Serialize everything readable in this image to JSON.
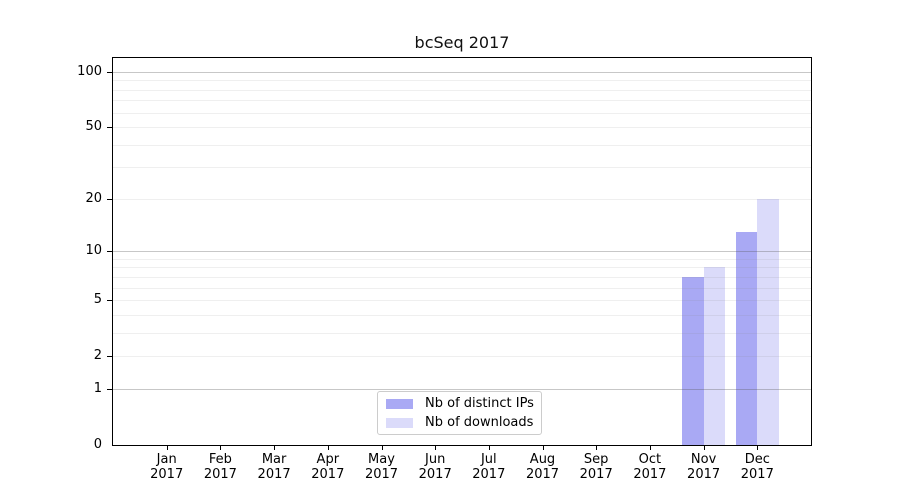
{
  "figure": {
    "background": "#ffffff"
  },
  "chart_data": {
    "type": "bar",
    "title": "bcSeq 2017",
    "categories": [
      {
        "month": "Jan",
        "year": "2017"
      },
      {
        "month": "Feb",
        "year": "2017"
      },
      {
        "month": "Mar",
        "year": "2017"
      },
      {
        "month": "Apr",
        "year": "2017"
      },
      {
        "month": "May",
        "year": "2017"
      },
      {
        "month": "Jun",
        "year": "2017"
      },
      {
        "month": "Jul",
        "year": "2017"
      },
      {
        "month": "Aug",
        "year": "2017"
      },
      {
        "month": "Sep",
        "year": "2017"
      },
      {
        "month": "Oct",
        "year": "2017"
      },
      {
        "month": "Nov",
        "year": "2017"
      },
      {
        "month": "Dec",
        "year": "2017"
      }
    ],
    "series": [
      {
        "name": "Nb of distinct IPs",
        "color": "#a9a9f4",
        "values": [
          0,
          0,
          0,
          0,
          0,
          0,
          0,
          0,
          0,
          0,
          7,
          13
        ]
      },
      {
        "name": "Nb of downloads",
        "color": "#dbdbfa",
        "values": [
          0,
          0,
          0,
          0,
          0,
          0,
          0,
          0,
          0,
          0,
          8,
          20
        ]
      }
    ],
    "y_axis": {
      "scale": "log10(1+y)",
      "tick_values": [
        0,
        1,
        2,
        5,
        10,
        20,
        50,
        100
      ],
      "major_gridlines": [
        1,
        10,
        100
      ],
      "minor_gridlines": [
        2,
        3,
        4,
        5,
        6,
        7,
        8,
        9,
        20,
        30,
        40,
        50,
        60,
        70,
        80,
        90
      ],
      "range": [
        0,
        118
      ]
    },
    "x_axis": {
      "tick_count": 12
    },
    "legend": {
      "position": "lower center"
    },
    "grid": true,
    "colors": {
      "grid_minor": "#efefef",
      "grid_major": "#c9c9c9",
      "spine": "#000000"
    }
  }
}
